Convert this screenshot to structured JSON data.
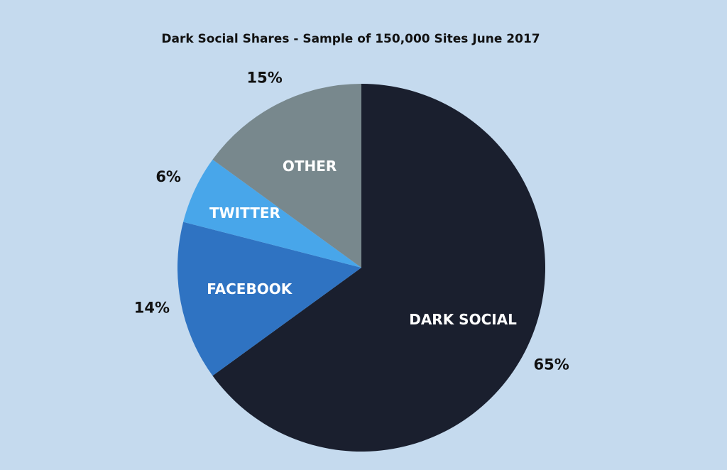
{
  "chart_data": {
    "type": "pie",
    "title": "Dark Social Shares - Sample of 150,000 Sites June 2017",
    "slices": [
      {
        "label": "DARK SOCIAL",
        "value": 65,
        "value_label": "65%",
        "color": "#1a1f2e"
      },
      {
        "label": "FACEBOOK",
        "value": 14,
        "value_label": "14%",
        "color": "#2f73c2"
      },
      {
        "label": "TWITTER",
        "value": 6,
        "value_label": "6%",
        "color": "#48a6ea"
      },
      {
        "label": "OTHER",
        "value": 15,
        "value_label": "15%",
        "color": "#78888d"
      }
    ],
    "start_position": "top, clockwise",
    "background_color": "#c5daee"
  }
}
